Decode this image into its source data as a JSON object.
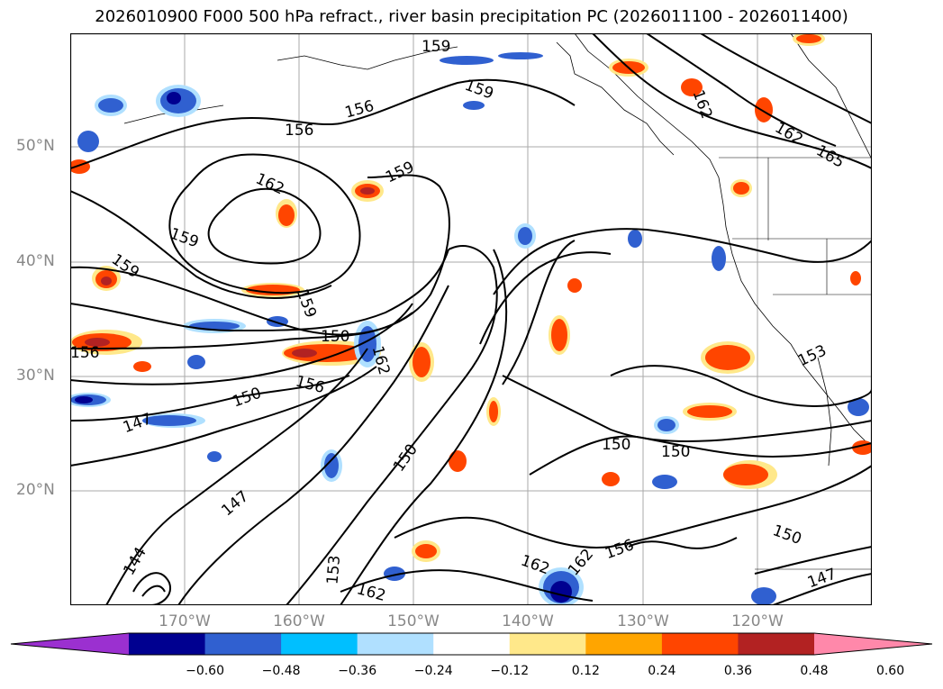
{
  "title": "2026010900 F000 500 hPa refract., river basin precipitation PC (2026011100 - 2026011400)",
  "axes": {
    "lat_labels": [
      "50°N",
      "40°N",
      "30°N",
      "20°N"
    ],
    "lon_labels": [
      "170°W",
      "160°W",
      "150°W",
      "140°W",
      "130°W",
      "120°W"
    ]
  },
  "colorbar": {
    "ticks": [
      "−0.60",
      "−0.48",
      "−0.36",
      "−0.24",
      "−0.12",
      "0.12",
      "0.24",
      "0.36",
      "0.48",
      "0.60"
    ],
    "colors": [
      "#9b30d0",
      "#000090",
      "#3060d0",
      "#00bfff",
      "#b0e0ff",
      "#ffffff",
      "#ffe88a",
      "#ffa500",
      "#ff4500",
      "#b22222",
      "#ff88aa"
    ]
  },
  "contour_labels": [
    "159",
    "159",
    "156",
    "156",
    "162",
    "162",
    "165",
    "159",
    "162",
    "159",
    "159",
    "159",
    "156",
    "150",
    "156",
    "162",
    "150",
    "147",
    "150",
    "150",
    "150",
    "147",
    "144",
    "153",
    "162",
    "162",
    "162",
    "156",
    "150",
    "147",
    "153"
  ],
  "chart_data": {
    "type": "map",
    "title": "2026010900 F000 500 hPa refract., river basin precipitation PC (2026011100 - 2026011400)",
    "contour_levels": [
      144,
      147,
      150,
      153,
      156,
      159,
      162,
      165
    ],
    "shading_levels": [
      -0.6,
      -0.48,
      -0.36,
      -0.24,
      -0.12,
      0.12,
      0.24,
      0.36,
      0.48,
      0.6
    ],
    "lat_range": [
      10,
      60
    ],
    "lon_range": [
      -180,
      -110
    ]
  }
}
